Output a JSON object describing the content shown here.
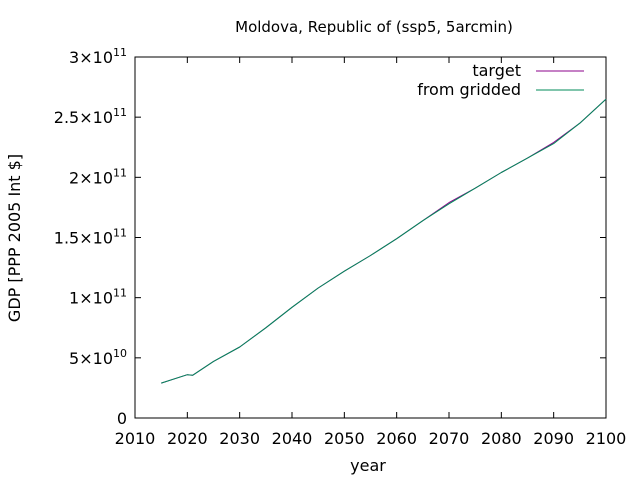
{
  "chart_data": {
    "type": "line",
    "title": "Moldova, Republic of (ssp5, 5arcmin)",
    "xlabel": "year",
    "ylabel": "GDP [PPP 2005 Int $]",
    "xlim": [
      2010,
      2100
    ],
    "ylim": [
      0,
      300000000000
    ],
    "x_ticks": [
      {
        "value": 2010,
        "label": "2010"
      },
      {
        "value": 2020,
        "label": "2020"
      },
      {
        "value": 2030,
        "label": "2030"
      },
      {
        "value": 2040,
        "label": "2040"
      },
      {
        "value": 2050,
        "label": "2050"
      },
      {
        "value": 2060,
        "label": "2060"
      },
      {
        "value": 2070,
        "label": "2070"
      },
      {
        "value": 2080,
        "label": "2080"
      },
      {
        "value": 2090,
        "label": "2090"
      },
      {
        "value": 2100,
        "label": "2100"
      }
    ],
    "y_ticks": [
      {
        "value": 0,
        "mantissa": "0",
        "exponent": ""
      },
      {
        "value": 50000000000,
        "mantissa": "5×10",
        "exponent": "10"
      },
      {
        "value": 100000000000,
        "mantissa": "1×10",
        "exponent": "11"
      },
      {
        "value": 150000000000,
        "mantissa": "1.5×10",
        "exponent": "11"
      },
      {
        "value": 200000000000,
        "mantissa": "2×10",
        "exponent": "11"
      },
      {
        "value": 250000000000,
        "mantissa": "2.5×10",
        "exponent": "11"
      },
      {
        "value": 300000000000,
        "mantissa": "3×10",
        "exponent": "11"
      }
    ],
    "grid": false,
    "legend_position": "top-right",
    "series": [
      {
        "name": "target",
        "color": "#8b008b",
        "x": [
          2015,
          2020,
          2021,
          2025,
          2030,
          2035,
          2040,
          2045,
          2050,
          2055,
          2060,
          2065,
          2070,
          2075,
          2080,
          2085,
          2090,
          2095,
          2100
        ],
        "values": [
          29000000000,
          36000000000,
          35500000000,
          47000000000,
          59000000000,
          75000000000,
          92000000000,
          108000000000,
          122000000000,
          135000000000,
          149000000000,
          164000000000,
          179000000000,
          191000000000,
          204000000000,
          216000000000,
          229000000000,
          245000000000,
          265000000000
        ]
      },
      {
        "name": "from gridded",
        "color": "#008b5a",
        "x": [
          2015,
          2020,
          2021,
          2025,
          2030,
          2035,
          2040,
          2045,
          2050,
          2055,
          2060,
          2065,
          2070,
          2075,
          2080,
          2085,
          2090,
          2095,
          2100
        ],
        "values": [
          29000000000,
          36000000000,
          35500000000,
          47000000000,
          59000000000,
          75000000000,
          92000000000,
          108000000000,
          122000000000,
          135000000000,
          149000000000,
          164000000000,
          178000000000,
          191000000000,
          204000000000,
          216000000000,
          228000000000,
          245000000000,
          265000000000
        ]
      }
    ]
  }
}
